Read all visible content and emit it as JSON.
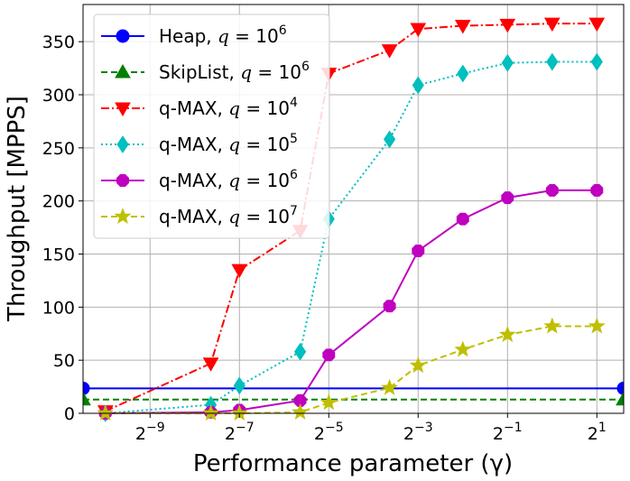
{
  "chart_data": {
    "type": "line",
    "xlabel": "Performance parameter (γ)",
    "ylabel": "Throughput [MPPS]",
    "x_scale": "log2",
    "xlim_exponent": [
      -10.5,
      1.6
    ],
    "ylim": [
      0,
      385
    ],
    "x_ticks": [
      {
        "exp": -9,
        "base": "2",
        "sup": "−9"
      },
      {
        "exp": -7,
        "base": "2",
        "sup": "−7"
      },
      {
        "exp": -5,
        "base": "2",
        "sup": "−5"
      },
      {
        "exp": -3,
        "base": "2",
        "sup": "−3"
      },
      {
        "exp": -1,
        "base": "2",
        "sup": "−1"
      },
      {
        "exp": 1,
        "base": "2",
        "sup": "1"
      }
    ],
    "y_ticks": [
      0,
      50,
      100,
      150,
      200,
      250,
      300,
      350
    ],
    "grid": true,
    "legend_position": "top-left",
    "series": [
      {
        "name": "Heap, q = 10^6",
        "label_main": "Heap, ",
        "label_q": "q",
        "label_eq": " = 10",
        "label_exp": "6",
        "color": "#0000ff",
        "dash": "",
        "marker": "circle",
        "x_exp": [
          -10.5,
          1.6
        ],
        "y": [
          23.5,
          23.5
        ]
      },
      {
        "name": "SkipList, q = 10^6",
        "label_main": "SkipList, ",
        "label_q": "q",
        "label_eq": " = 10",
        "label_exp": "6",
        "color": "#008000",
        "dash": "7,4",
        "marker": "triangle-up",
        "x_exp": [
          -10.5,
          1.6
        ],
        "y": [
          13,
          13
        ]
      },
      {
        "name": "q-MAX, q = 10^4",
        "label_main": "q-MAX, ",
        "label_q": "q",
        "label_eq": " = 10",
        "label_exp": "4",
        "color": "#ff0000",
        "dash": "9,3,2,3",
        "marker": "triangle-down",
        "x_exp": [
          -10,
          -7.64,
          -7,
          -5.64,
          -5,
          -3.64,
          -3,
          -2,
          -1,
          0,
          1
        ],
        "y": [
          2,
          47,
          135,
          172,
          320,
          342,
          362,
          365,
          366,
          367,
          367
        ]
      },
      {
        "name": "q-MAX, q = 10^5",
        "label_main": "q-MAX, ",
        "label_q": "q",
        "label_eq": " = 10",
        "label_exp": "5",
        "color": "#00bfbf",
        "dash": "2,3",
        "marker": "thin-diamond",
        "x_exp": [
          -10,
          -7.64,
          -7,
          -5.64,
          -5,
          -3.64,
          -3,
          -2,
          -1,
          0,
          1
        ],
        "y": [
          0,
          8,
          26,
          58,
          183,
          258,
          309,
          320,
          330,
          331,
          331
        ]
      },
      {
        "name": "q-MAX, q = 10^6",
        "label_main": "q-MAX, ",
        "label_q": "q",
        "label_eq": " = 10",
        "label_exp": "6",
        "color": "#bf00bf",
        "dash": "",
        "marker": "octagon",
        "x_exp": [
          -10,
          -7.64,
          -7,
          -5.64,
          -5,
          -3.64,
          -3,
          -2,
          -1,
          0,
          1
        ],
        "y": [
          0,
          1,
          3,
          12,
          55,
          101,
          153,
          183,
          203,
          210,
          210
        ]
      },
      {
        "name": "q-MAX, q = 10^7",
        "label_main": "q-MAX, ",
        "label_q": "q",
        "label_eq": " = 10",
        "label_exp": "7",
        "color": "#bfbf00",
        "dash": "7,4",
        "marker": "star",
        "x_exp": [
          -10,
          -7.64,
          -7,
          -5.64,
          -5,
          -3.64,
          -3,
          -2,
          -1,
          0,
          1
        ],
        "y": [
          0,
          0,
          0,
          1,
          10,
          24,
          45,
          60,
          74,
          82,
          82
        ]
      }
    ]
  }
}
